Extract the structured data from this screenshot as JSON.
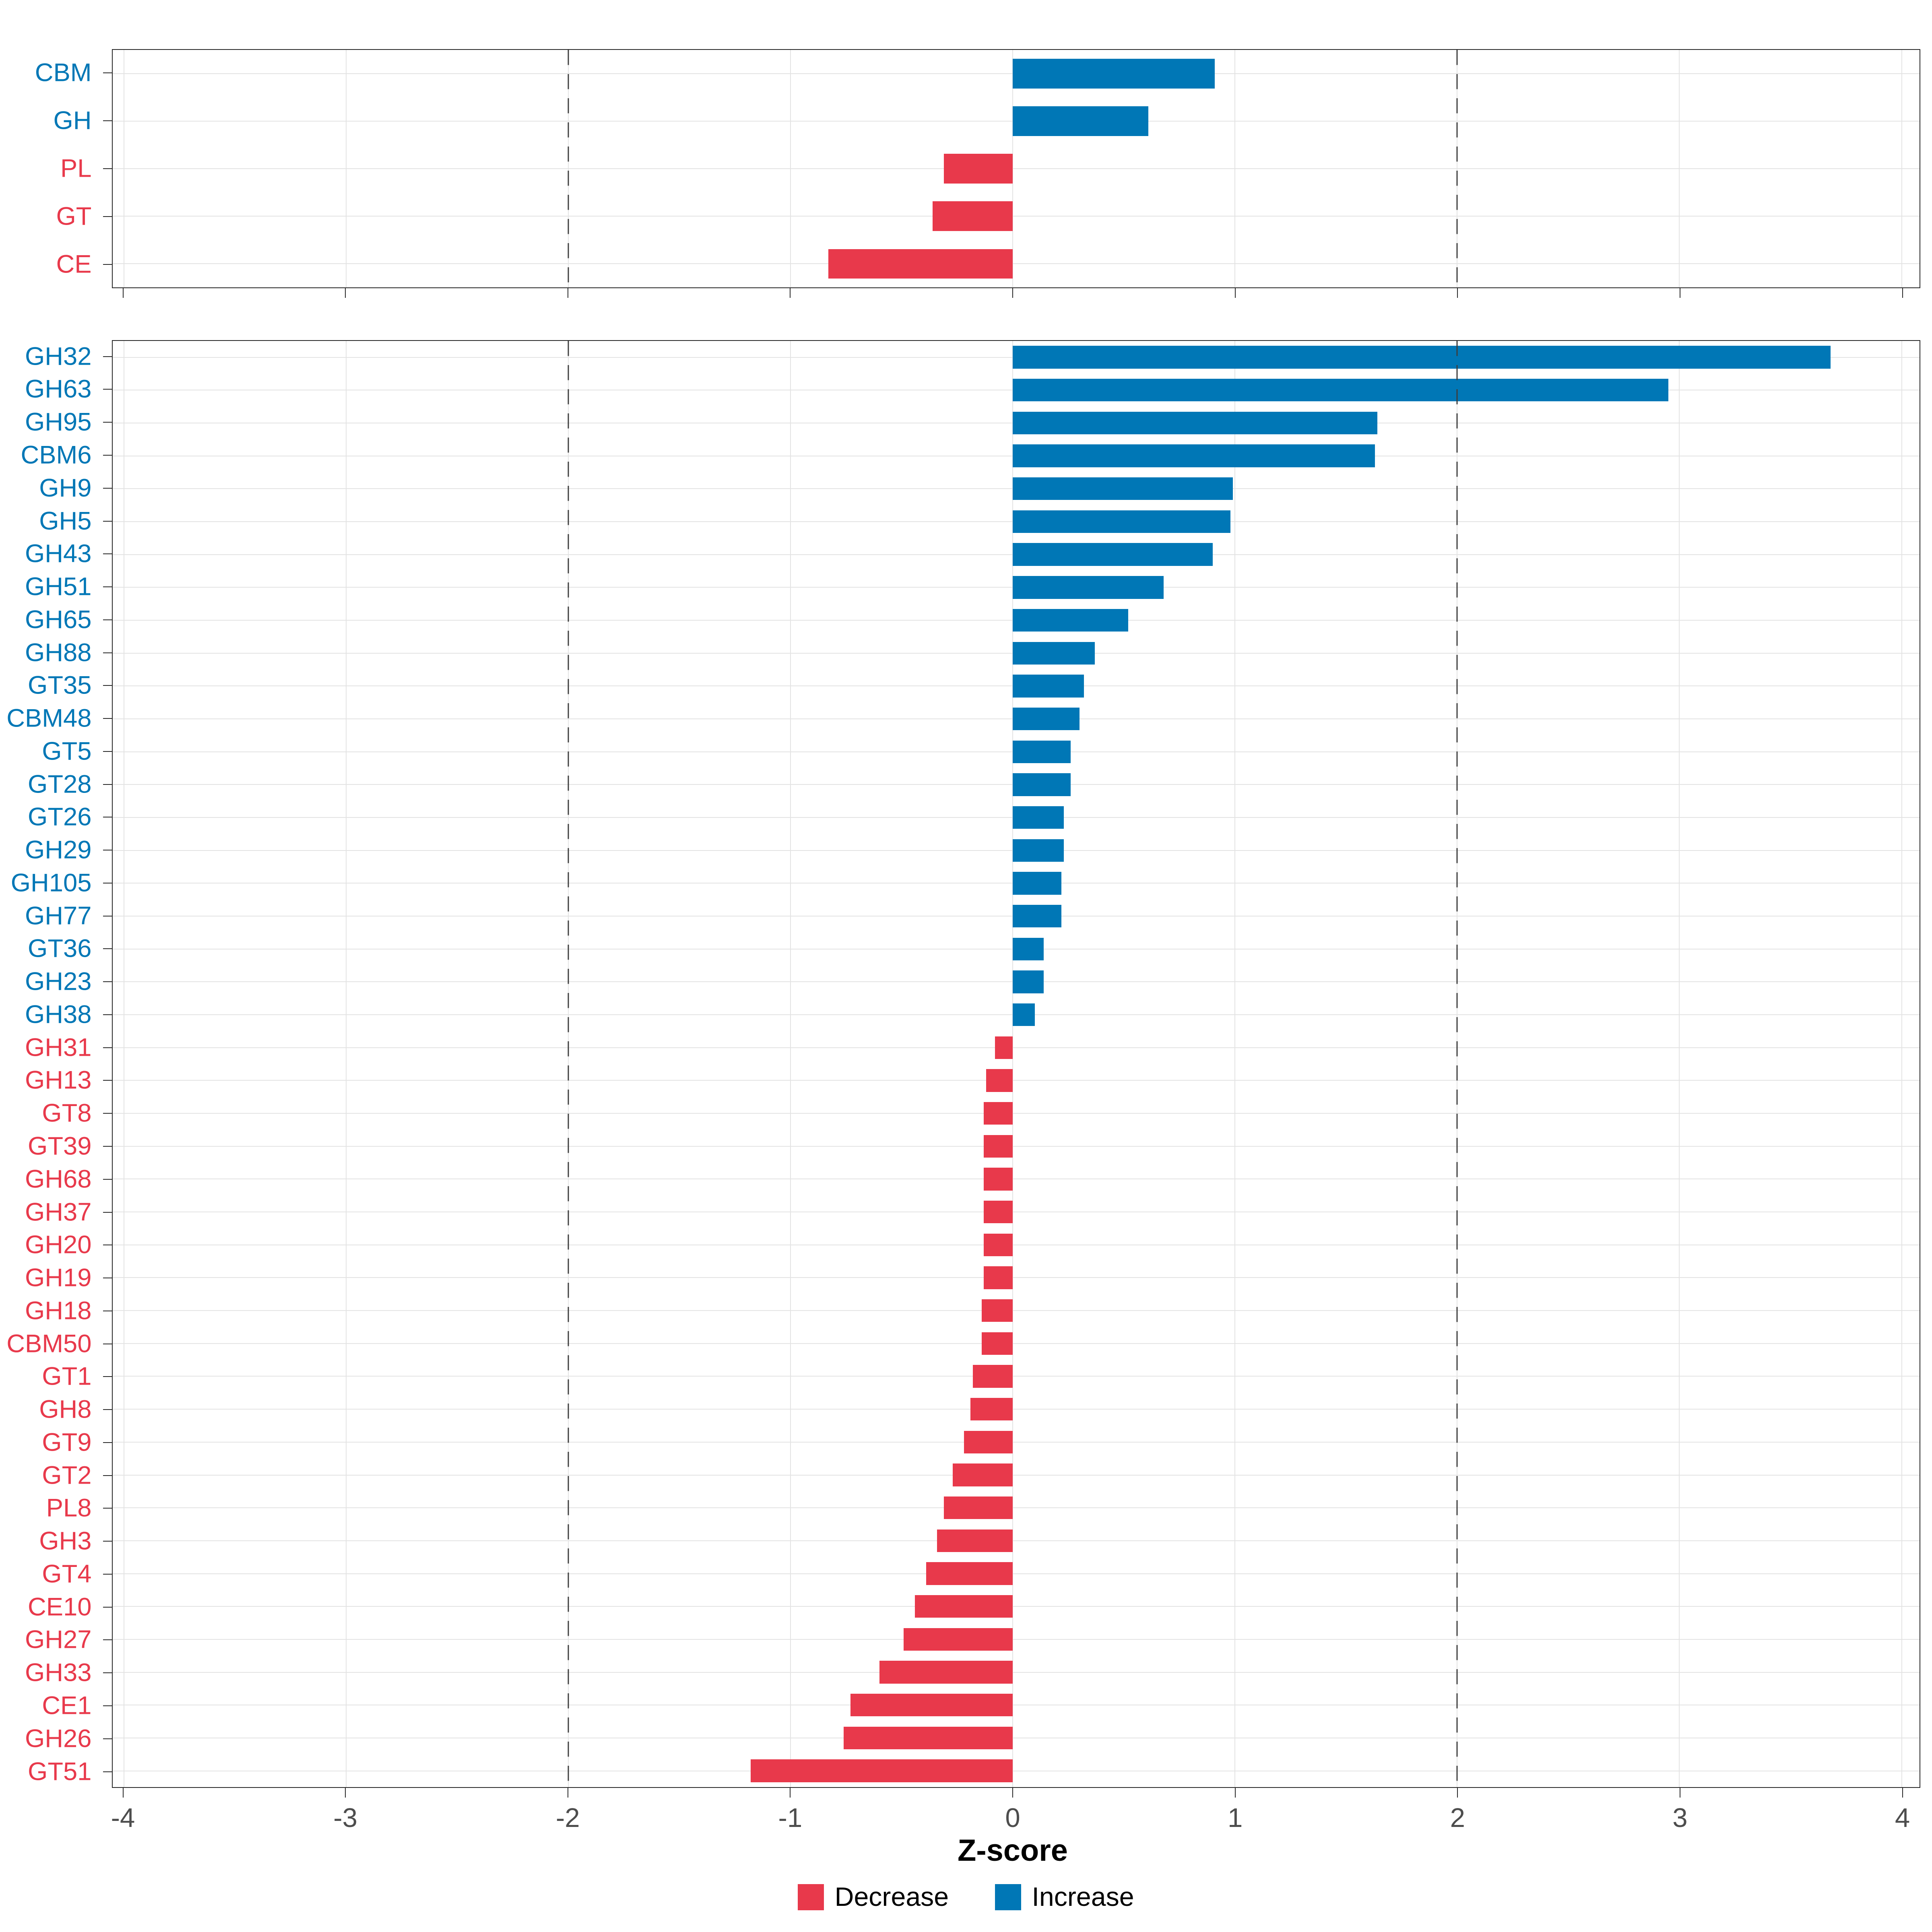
{
  "axis": {
    "title": "Z-score",
    "ticks": [
      -4,
      -3,
      -2,
      -1,
      0,
      1,
      2,
      3,
      4
    ],
    "tick_labels": [
      "-4",
      "-3",
      "-2",
      "-1",
      "0",
      "1",
      "2",
      "3",
      "4"
    ],
    "xlim": [
      -4.05,
      4.08
    ],
    "reference_lines": [
      -2,
      2
    ]
  },
  "colors": {
    "increase": "#0077b6",
    "decrease": "#e8394b",
    "gridline": "#e3e3e3",
    "panel_border": "#262626",
    "tick_label": "#4d4d4d"
  },
  "legend": {
    "items": [
      {
        "label": "Decrease",
        "color": "#e8394b"
      },
      {
        "label": "Increase",
        "color": "#0077b6"
      }
    ]
  },
  "chart_data": [
    {
      "type": "bar",
      "orientation": "horizontal",
      "panel": "top",
      "xlabel": "Z-score",
      "xlim": [
        -4.05,
        4.08
      ],
      "grid": true,
      "categories": [
        "CBM",
        "GH",
        "PL",
        "GT",
        "CE"
      ],
      "values": [
        0.91,
        0.61,
        -0.31,
        -0.36,
        -0.83
      ]
    },
    {
      "type": "bar",
      "orientation": "horizontal",
      "panel": "bottom",
      "xlabel": "Z-score",
      "xlim": [
        -4.05,
        4.08
      ],
      "grid": true,
      "categories": [
        "GH32",
        "GH63",
        "GH95",
        "CBM6",
        "GH9",
        "GH5",
        "GH43",
        "GH51",
        "GH65",
        "GH88",
        "GT35",
        "CBM48",
        "GT5",
        "GT28",
        "GT26",
        "GH29",
        "GH105",
        "GH77",
        "GT36",
        "GH23",
        "GH38",
        "GH31",
        "GH13",
        "GT8",
        "GT39",
        "GH68",
        "GH37",
        "GH20",
        "GH19",
        "GH18",
        "CBM50",
        "GT1",
        "GH8",
        "GT9",
        "GT2",
        "PL8",
        "GH3",
        "GT4",
        "CE10",
        "GH27",
        "GH33",
        "CE1",
        "GH26",
        "GT51"
      ],
      "values": [
        3.68,
        2.95,
        1.64,
        1.63,
        0.99,
        0.98,
        0.9,
        0.68,
        0.52,
        0.37,
        0.32,
        0.3,
        0.26,
        0.26,
        0.23,
        0.23,
        0.22,
        0.22,
        0.14,
        0.14,
        0.1,
        -0.08,
        -0.12,
        -0.13,
        -0.13,
        -0.13,
        -0.13,
        -0.13,
        -0.13,
        -0.14,
        -0.14,
        -0.18,
        -0.19,
        -0.22,
        -0.27,
        -0.31,
        -0.34,
        -0.39,
        -0.44,
        -0.49,
        -0.6,
        -0.73,
        -0.76,
        -1.18
      ]
    }
  ]
}
